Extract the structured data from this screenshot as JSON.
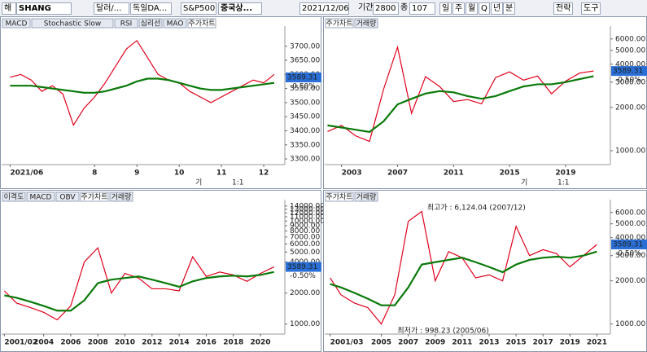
{
  "toolbar": {
    "items": [
      "해",
      "SHANG",
      "달러/...",
      "독일DA...",
      "S&P500",
      "중국상...",
      "2021/12/06",
      "기간",
      "2800",
      "종",
      "107"
    ],
    "periods": [
      "일",
      "주",
      "월",
      "Q",
      "년",
      "분"
    ],
    "buttons": [
      "전략",
      "도구"
    ]
  },
  "chart_data": [
    {
      "type": "line",
      "tabs": [
        "MACD",
        "Stochastic Slow",
        "RSI",
        "심리선",
        "MAO",
        "주가차트"
      ],
      "active_tab": 5,
      "controls": [
        "기",
        "1:1"
      ],
      "x": [
        6,
        6.25,
        6.5,
        6.75,
        7,
        7.25,
        7.5,
        7.75,
        8,
        8.25,
        8.5,
        8.75,
        9,
        9.25,
        9.5,
        9.75,
        10,
        10.25,
        10.5,
        10.75,
        11,
        11.25,
        11.5,
        11.75,
        12,
        12.25
      ],
      "series": [
        {
          "color": "#e0001b",
          "values": [
            3590,
            3600,
            3580,
            3540,
            3560,
            3530,
            3420,
            3480,
            3520,
            3570,
            3630,
            3690,
            3720,
            3660,
            3600,
            3580,
            3570,
            3540,
            3520,
            3500,
            3520,
            3540,
            3560,
            3580,
            3570,
            3600
          ]
        },
        {
          "color": "#0a7a0a",
          "values": [
            3560,
            3560,
            3560,
            3555,
            3550,
            3545,
            3540,
            3535,
            3535,
            3540,
            3550,
            3560,
            3575,
            3585,
            3585,
            3580,
            3570,
            3560,
            3550,
            3545,
            3545,
            3550,
            3555,
            3560,
            3565,
            3570
          ]
        }
      ],
      "xlim": [
        5.8,
        12.5
      ],
      "xticks": [
        {
          "value": 6,
          "label": "2021/06"
        },
        8,
        9,
        10,
        11,
        12
      ],
      "ylim": [
        3280,
        3760
      ],
      "log_scale": false,
      "yticks": [
        {
          "value": 3700,
          "label": "3700.00"
        },
        {
          "value": 3650,
          "label": "3650.00"
        },
        {
          "value": 3600,
          "label": "3600.00"
        },
        {
          "value": 3550,
          "label": "3550.00"
        },
        {
          "value": 3500,
          "label": "3500.00"
        },
        {
          "value": 3450,
          "label": "3450.00"
        },
        {
          "value": 3400,
          "label": "3400.00"
        },
        {
          "value": 3350,
          "label": "3350.00"
        },
        {
          "value": 3300,
          "label": "3300.00"
        }
      ],
      "last_price": 3589.31,
      "change": "-0.50%"
    },
    {
      "type": "line",
      "tabs": [
        "주가차트",
        "거래량"
      ],
      "active_tab": 0,
      "controls": [
        "기",
        "1:1"
      ],
      "x": [
        2002,
        2003,
        2004,
        2005,
        2006,
        2007,
        2008,
        2009,
        2010,
        2011,
        2012,
        2013,
        2014,
        2015,
        2016,
        2017,
        2018,
        2019,
        2020,
        2021
      ],
      "series": [
        {
          "color": "#e0001b",
          "values": [
            1360,
            1500,
            1270,
            1160,
            2675,
            5260,
            1820,
            3280,
            2800,
            2200,
            2270,
            2120,
            3230,
            3540,
            3100,
            3310,
            2490,
            3050,
            3470,
            3590
          ]
        },
        {
          "color": "#0a7a0a",
          "values": [
            1500,
            1450,
            1400,
            1350,
            1600,
            2100,
            2300,
            2500,
            2600,
            2550,
            2400,
            2300,
            2400,
            2600,
            2800,
            2900,
            2900,
            3000,
            3150,
            3300
          ]
        }
      ],
      "xlim": [
        2001.8,
        2022.2
      ],
      "xticks": [
        2003,
        2007,
        2011,
        2015,
        2019
      ],
      "ylim": [
        800,
        7000
      ],
      "log_scale": true,
      "yticks": [
        {
          "value": 6000,
          "label": "6000.00"
        },
        {
          "value": 5000,
          "label": "5000.00"
        },
        {
          "value": 4000,
          "label": "4000.00"
        },
        {
          "value": 3000,
          "label": "3000.00"
        },
        {
          "value": 2000,
          "label": "2000.00"
        },
        {
          "value": 1000,
          "label": "1000.00"
        }
      ],
      "last_price": 3589.31,
      "change": "-0.50%"
    },
    {
      "type": "line",
      "tabs": [
        "이격도",
        "MACD",
        "OBV",
        "주가차트",
        "거래량"
      ],
      "active_tab": 3,
      "x": [
        2001.1,
        2002,
        2003,
        2004,
        2005,
        2006,
        2007,
        2008,
        2009,
        2010,
        2011,
        2012,
        2013,
        2014,
        2015,
        2016,
        2017,
        2018,
        2019,
        2020,
        2021
      ],
      "series": [
        {
          "color": "#e0001b",
          "values": [
            2100,
            1600,
            1450,
            1300,
            1100,
            1500,
            4000,
            5500,
            2000,
            3100,
            2800,
            2200,
            2200,
            2100,
            4500,
            2900,
            3200,
            3000,
            2600,
            3100,
            3590
          ]
        },
        {
          "color": "#0a7a0a",
          "values": [
            1900,
            1800,
            1650,
            1500,
            1350,
            1350,
            1700,
            2500,
            2700,
            2800,
            2900,
            2700,
            2500,
            2300,
            2600,
            2800,
            2900,
            2950,
            2900,
            3000,
            3200
          ]
        }
      ],
      "xlim": [
        2000.9,
        2021.8
      ],
      "xticks": [
        {
          "value": 2001.1,
          "label": "2001/02"
        },
        2004,
        2006,
        2008,
        2010,
        2012,
        2014,
        2016,
        2018,
        2020
      ],
      "ylim": [
        800,
        15000
      ],
      "log_scale": true,
      "yticks": [
        {
          "value": 14000,
          "label": "14000.00"
        },
        {
          "value": 13000,
          "label": "13000.00"
        },
        {
          "value": 12000,
          "label": "12000.00"
        },
        {
          "value": 11000,
          "label": "11000.00"
        },
        {
          "value": 10000,
          "label": "10000.00"
        },
        {
          "value": 9000,
          "label": "9000.00"
        },
        {
          "value": 8000,
          "label": "8000.00"
        },
        {
          "value": 7000,
          "label": "7000.00"
        },
        {
          "value": 6000,
          "label": "6000.00"
        },
        {
          "value": 5000,
          "label": "5000.00"
        },
        {
          "value": 4000,
          "label": "4000.00"
        },
        {
          "value": 2000,
          "label": "2000.00"
        },
        {
          "value": 1000,
          "label": "1000.00"
        }
      ],
      "last_price": 3589.31,
      "change": "-0.50%"
    },
    {
      "type": "line",
      "tabs": [
        "주가차트",
        "거래량"
      ],
      "active_tab": 0,
      "x": [
        2001.2,
        2002,
        2003,
        2004,
        2005,
        2006,
        2007,
        2008,
        2009,
        2010,
        2011,
        2012,
        2013,
        2014,
        2015,
        2016,
        2017,
        2018,
        2019,
        2020,
        2021
      ],
      "series": [
        {
          "color": "#e0001b",
          "values": [
            2100,
            1600,
            1400,
            1300,
            1000,
            1600,
            5200,
            6100,
            2000,
            3200,
            2900,
            2100,
            2200,
            2000,
            4800,
            3000,
            3300,
            3100,
            2500,
            3000,
            3590
          ]
        },
        {
          "color": "#0a7a0a",
          "values": [
            1900,
            1800,
            1650,
            1500,
            1350,
            1350,
            1800,
            2600,
            2700,
            2800,
            2900,
            2700,
            2500,
            2300,
            2600,
            2800,
            2900,
            2950,
            2900,
            3000,
            3200
          ]
        }
      ],
      "xlim": [
        2000.8,
        2022
      ],
      "xticks": [
        {
          "value": 2001.2,
          "label": "2001/03"
        },
        2005,
        2007,
        2009,
        2011,
        2013,
        2015,
        2017,
        2019,
        2021
      ],
      "ylim": [
        850,
        7000
      ],
      "log_scale": true,
      "yticks": [
        {
          "value": 6000,
          "label": "6000.00"
        },
        {
          "value": 5000,
          "label": "5000.00"
        },
        {
          "value": 4000,
          "label": "4000.00"
        },
        {
          "value": 3000,
          "label": "3000.00"
        },
        {
          "value": 2000,
          "label": "2000.00"
        },
        {
          "value": 1000,
          "label": "1000.00"
        }
      ],
      "last_price": 3589.31,
      "change": "-0.50%",
      "annotations": [
        "최고가 : 6,124.04 (2007/12)",
        "최저가 : 998.23 (2005/06)"
      ]
    }
  ]
}
